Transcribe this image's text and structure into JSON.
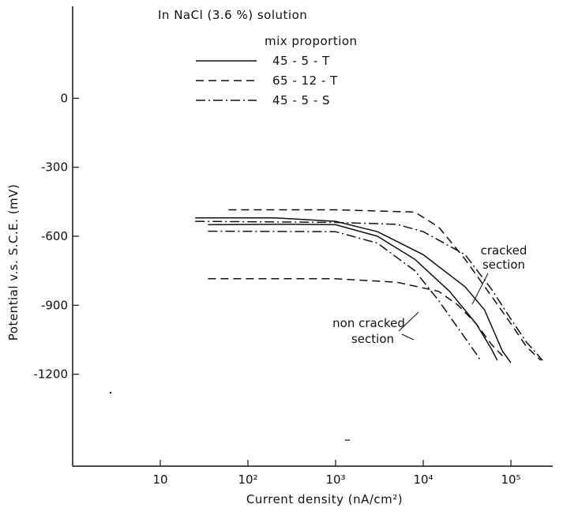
{
  "chart_data": {
    "type": "line",
    "title": "In NaCl (3.6 %) solution",
    "xlabel": "Current density (nA/cm²)",
    "ylabel": "Potential v.s. S.C.E. (mV)",
    "x_scale": "log",
    "xlim": [
      1,
      300000
    ],
    "ylim": [
      -1600,
      400
    ],
    "x_ticks": [
      {
        "value": 10,
        "label": "10"
      },
      {
        "value": 100,
        "label": "10²"
      },
      {
        "value": 1000,
        "label": "10³"
      },
      {
        "value": 10000,
        "label": "10⁴"
      },
      {
        "value": 100000,
        "label": "10⁵"
      }
    ],
    "y_ticks": [
      {
        "value": 0,
        "label": "0"
      },
      {
        "value": -300,
        "label": "-300"
      },
      {
        "value": -600,
        "label": "-600"
      },
      {
        "value": -900,
        "label": "-900"
      },
      {
        "value": -1200,
        "label": "-1200"
      }
    ],
    "legend": {
      "title": "mix proportion",
      "placement": "top-left",
      "entries": [
        {
          "label": "45 - 5 - T",
          "style": "solid"
        },
        {
          "label": "65 - 12 - T",
          "style": "dashed"
        },
        {
          "label": "45 - 5 - S",
          "style": "dashdot"
        }
      ]
    },
    "series": [
      {
        "style": "solid",
        "points": [
          [
            25,
            -520
          ],
          [
            200,
            -520
          ],
          [
            1000,
            -535
          ],
          [
            3000,
            -580
          ],
          [
            10000,
            -680
          ],
          [
            30000,
            -820
          ],
          [
            50000,
            -920
          ],
          [
            80000,
            -1100
          ],
          [
            100000,
            -1150
          ]
        ]
      },
      {
        "style": "solid",
        "points": [
          [
            35,
            -550
          ],
          [
            300,
            -548
          ],
          [
            1000,
            -550
          ],
          [
            3000,
            -600
          ],
          [
            8000,
            -700
          ],
          [
            20000,
            -840
          ],
          [
            40000,
            -980
          ],
          [
            60000,
            -1090
          ],
          [
            70000,
            -1140
          ]
        ]
      },
      {
        "style": "dashed",
        "points": [
          [
            60,
            -485
          ],
          [
            1000,
            -485
          ],
          [
            8000,
            -495
          ],
          [
            15000,
            -560
          ],
          [
            30000,
            -700
          ],
          [
            60000,
            -860
          ],
          [
            100000,
            -980
          ],
          [
            150000,
            -1080
          ],
          [
            220000,
            -1140
          ]
        ]
      },
      {
        "style": "dashed",
        "points": [
          [
            35,
            -785
          ],
          [
            1000,
            -785
          ],
          [
            5000,
            -800
          ],
          [
            15000,
            -840
          ],
          [
            25000,
            -900
          ],
          [
            40000,
            -980
          ],
          [
            60000,
            -1070
          ],
          [
            80000,
            -1120
          ]
        ]
      },
      {
        "style": "dashdot",
        "points": [
          [
            25,
            -535
          ],
          [
            1000,
            -540
          ],
          [
            5000,
            -548
          ],
          [
            10000,
            -580
          ],
          [
            30000,
            -680
          ],
          [
            60000,
            -830
          ],
          [
            100000,
            -960
          ],
          [
            150000,
            -1060
          ],
          [
            230000,
            -1140
          ]
        ]
      },
      {
        "style": "dashdot",
        "points": [
          [
            35,
            -578
          ],
          [
            1000,
            -580
          ],
          [
            3000,
            -630
          ],
          [
            8000,
            -750
          ],
          [
            15000,
            -880
          ],
          [
            25000,
            -1000
          ],
          [
            40000,
            -1110
          ],
          [
            45000,
            -1140
          ]
        ]
      }
    ],
    "annotations": [
      {
        "lines": [
          "cracked",
          "section"
        ],
        "x": 30000,
        "y": -860
      },
      {
        "lines": [
          "non cracked",
          "section"
        ],
        "x": 12000,
        "y": -900
      }
    ]
  }
}
